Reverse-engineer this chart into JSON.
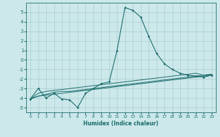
{
  "xlabel": "Humidex (Indice chaleur)",
  "ylabel": "",
  "bg_color": "#cce8eb",
  "grid_color": "#aacccc",
  "line_color": "#1a6b6b",
  "xlim": [
    -0.5,
    23.5
  ],
  "ylim": [
    -5.5,
    6.0
  ],
  "yticks": [
    -5,
    -4,
    -3,
    -2,
    -1,
    0,
    1,
    2,
    3,
    4,
    5
  ],
  "xticks": [
    0,
    1,
    2,
    3,
    4,
    5,
    6,
    7,
    8,
    9,
    10,
    11,
    12,
    13,
    14,
    15,
    16,
    17,
    18,
    19,
    20,
    21,
    22,
    23
  ],
  "line1_x": [
    0,
    1,
    2,
    3,
    4,
    5,
    6,
    7,
    8,
    9,
    10,
    11,
    12,
    13,
    14,
    15,
    16,
    17,
    18,
    19,
    20,
    21,
    22,
    23
  ],
  "line1_y": [
    -4.1,
    -3.0,
    -4.0,
    -3.5,
    -4.1,
    -4.2,
    -5.0,
    -3.5,
    -3.0,
    -2.5,
    -2.3,
    1.0,
    5.5,
    5.2,
    4.5,
    2.5,
    0.7,
    -0.4,
    -1.0,
    -1.4,
    -1.6,
    -1.7,
    -1.8,
    -1.6
  ],
  "line2_x": [
    0,
    1,
    2,
    3,
    4,
    5,
    6,
    7,
    8,
    9,
    10,
    11,
    12,
    13,
    14,
    15,
    16,
    17,
    18,
    19,
    20,
    21,
    22,
    23
  ],
  "line2_y": [
    -4.1,
    -3.8,
    -3.7,
    -3.6,
    -3.5,
    -3.4,
    -3.3,
    -3.2,
    -3.1,
    -3.0,
    -2.9,
    -2.8,
    -2.7,
    -2.6,
    -2.5,
    -2.4,
    -2.3,
    -2.2,
    -2.1,
    -2.0,
    -1.9,
    -1.8,
    -1.7,
    -1.6
  ],
  "line3_x": [
    0,
    1,
    2,
    3,
    4,
    5,
    6,
    7,
    8,
    9,
    10,
    11,
    12,
    13,
    14,
    15,
    16,
    17,
    18,
    19,
    20,
    21,
    22,
    23
  ],
  "line3_y": [
    -4.1,
    -3.5,
    -3.3,
    -3.2,
    -3.1,
    -3.0,
    -2.9,
    -2.8,
    -2.7,
    -2.6,
    -2.5,
    -2.4,
    -2.3,
    -2.2,
    -2.1,
    -2.0,
    -1.9,
    -1.8,
    -1.7,
    -1.6,
    -1.5,
    -1.4,
    -1.6,
    -1.5
  ],
  "line4_x": [
    0,
    1,
    2,
    3,
    4,
    5,
    6,
    7,
    8,
    9,
    10,
    11,
    12,
    13,
    14,
    15,
    16,
    17,
    18,
    19,
    20,
    21,
    22,
    23
  ],
  "line4_y": [
    -4.1,
    -3.8,
    -3.6,
    -3.4,
    -3.3,
    -3.3,
    -3.2,
    -3.1,
    -3.0,
    -2.9,
    -2.8,
    -2.7,
    -2.6,
    -2.5,
    -2.4,
    -2.3,
    -2.2,
    -2.1,
    -2.0,
    -1.9,
    -1.8,
    -1.7,
    -1.6,
    -1.5
  ]
}
